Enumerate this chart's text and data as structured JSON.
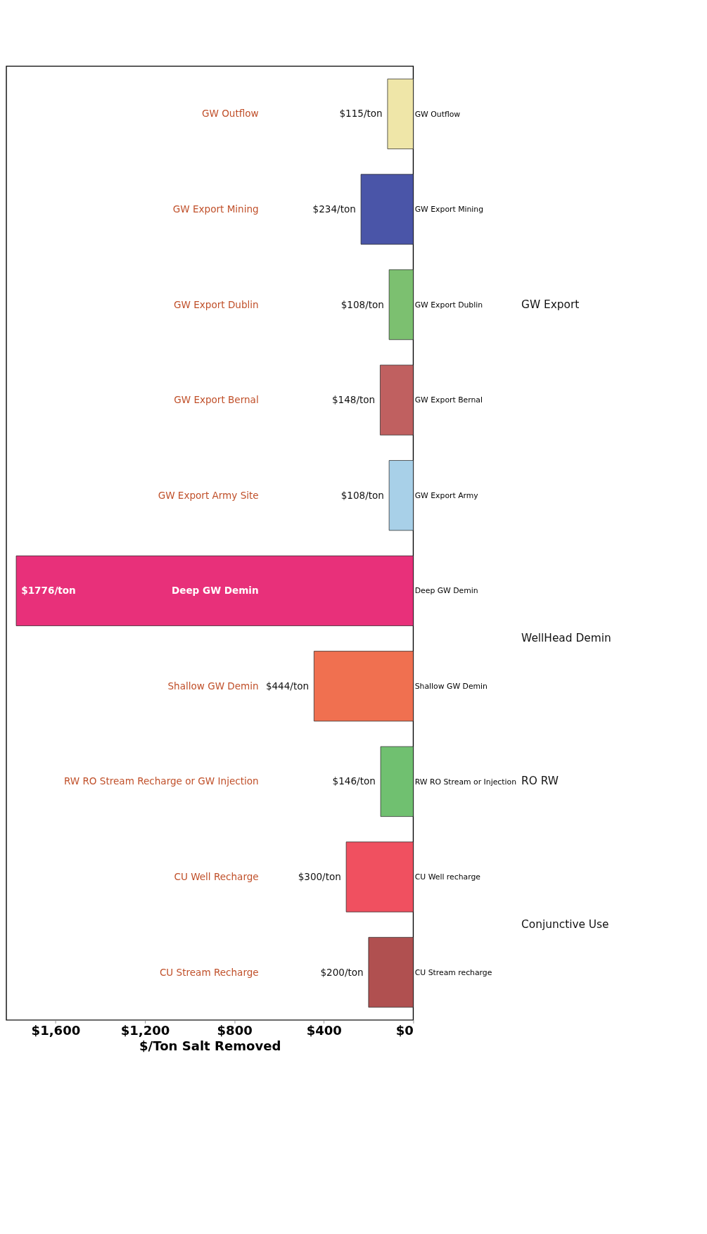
{
  "chart_data": {
    "type": "bar",
    "orientation": "horizontal",
    "xlabel": "$/Ton Salt Removed",
    "categories": [
      "GW Outflow",
      "GW Export Mining",
      "GW Export Dublin",
      "GW Export Bernal",
      "GW Export Army",
      "Deep GW Demin",
      "Shallow GW Demin",
      "RW RO Stream or Injection",
      "CU Well recharge",
      "CU Stream recharge"
    ],
    "values": [
      115,
      234,
      108,
      148,
      108,
      1776,
      444,
      146,
      300,
      200
    ],
    "colors": [
      "#efe6a8",
      "#4a55a8",
      "#7cc070",
      "#c06060",
      "#a8d0e8",
      "#e8307a",
      "#f07050",
      "#70c070",
      "#f05060",
      "#b05050"
    ],
    "value_labels": [
      "$115/ton",
      "$234/ton",
      "$108/ton",
      "$148/ton",
      "$108/ton",
      "$1776/ton",
      "$444/ton",
      "$146/ton",
      "$300/ton",
      "$200/ton"
    ],
    "xlim": [
      1820,
      0
    ],
    "xticks": [
      {
        "value": 0,
        "label": "$0"
      },
      {
        "value": 400,
        "label": "$400"
      },
      {
        "value": 800,
        "label": "$800"
      },
      {
        "value": 1200,
        "label": "$1,200"
      },
      {
        "value": 1600,
        "label": "$1,600"
      }
    ],
    "grid": false,
    "annotations": [
      "GW Outflow",
      "GW Export Mining",
      "GW Export Dublin",
      "GW Export Bernal",
      "GW Export Army Site",
      "Deep GW Demin",
      "Shallow GW Demin",
      "RW RO Stream Recharge or GW Injection",
      "CU Well Recharge",
      "CU Stream Recharge",
      "GW Export",
      "WellHead Demin",
      "RO RW",
      "Conjunctive Use"
    ]
  }
}
